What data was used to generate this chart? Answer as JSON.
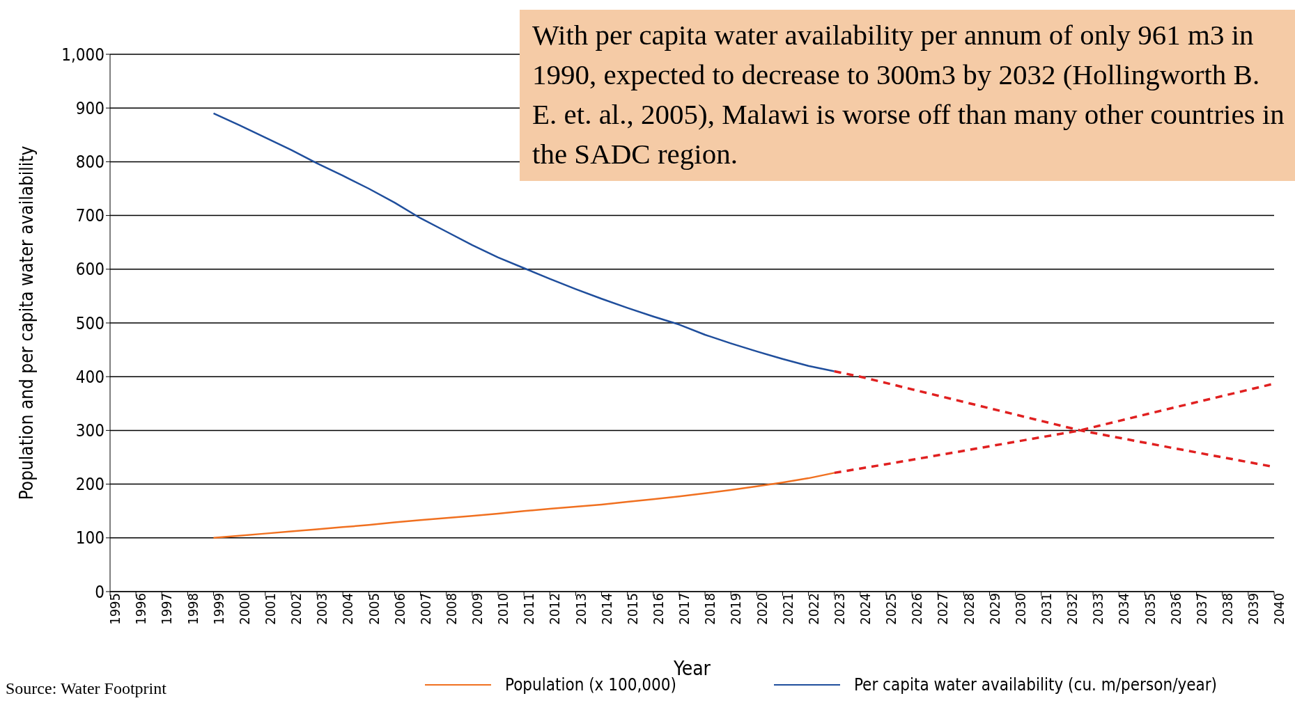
{
  "chart_data": {
    "type": "line",
    "xlabel": "Year",
    "ylabel": "Population and per capita water availability",
    "annotations": [
      "With per capita water availability per annum of only 961 m3 in 1990, expected to decrease to 300m3 by 2032 (Hollingworth B. E. et. al., 2005), Malawi is worse off than many other countries in the SADC region.",
      "Source: Water Footprint"
    ],
    "xlim": [
      1995,
      2040
    ],
    "xticks": [
      1995,
      1996,
      1997,
      1998,
      1999,
      2000,
      2001,
      2002,
      2003,
      2004,
      2005,
      2006,
      2007,
      2008,
      2009,
      2010,
      2011,
      2012,
      2013,
      2014,
      2015,
      2016,
      2017,
      2018,
      2019,
      2020,
      2021,
      2022,
      2023,
      2024,
      2025,
      2026,
      2027,
      2028,
      2029,
      2030,
      2031,
      2032,
      2033,
      2034,
      2035,
      2036,
      2037,
      2038,
      2039,
      2040
    ],
    "ylim": [
      0,
      1000
    ],
    "yticks": [
      0,
      100,
      200,
      300,
      400,
      500,
      600,
      700,
      800,
      900,
      {
        "value": 1000,
        "label": "1,000"
      }
    ],
    "grid": "y",
    "legend": "bottom",
    "series": [
      {
        "name": "Population (x 100,000)",
        "color": "#f07020",
        "x": [
          1999,
          2000,
          2001,
          2002,
          2003,
          2004,
          2005,
          2006,
          2007,
          2008,
          2009,
          2010,
          2011,
          2012,
          2013,
          2014,
          2015,
          2016,
          2017,
          2018,
          2019,
          2020,
          2021,
          2022,
          2023
        ],
        "values": [
          100,
          104,
          108,
          112,
          116,
          120,
          124,
          129,
          133,
          137,
          141,
          145,
          150,
          154,
          158,
          162,
          167,
          172,
          177,
          183,
          189,
          196,
          203,
          211,
          221
        ]
      },
      {
        "name": "Per capita water availability (cu. m/person/year)",
        "color": "#1f4e9c",
        "x": [
          1999,
          2000,
          2001,
          2002,
          2003,
          2004,
          2005,
          2006,
          2007,
          2008,
          2009,
          2010,
          2011,
          2012,
          2013,
          2014,
          2015,
          2016,
          2017,
          2018,
          2019,
          2020,
          2021,
          2022,
          2023
        ],
        "values": [
          890,
          868,
          845,
          822,
          797,
          774,
          750,
          724,
          695,
          670,
          645,
          622,
          602,
          582,
          563,
          545,
          528,
          512,
          497,
          478,
          462,
          447,
          433,
          420,
          410
        ]
      },
      {
        "color": "#e02020",
        "line_style": "dashed",
        "x": [
          2023,
          2025,
          2028,
          2032.5,
          2036,
          2040
        ],
        "values": [
          221,
          237,
          262,
          300,
          341,
          387
        ]
      },
      {
        "color": "#e02020",
        "line_style": "dashed",
        "x": [
          2023,
          2024,
          2028,
          2032.5,
          2036,
          2040
        ],
        "values": [
          410,
          400,
          353,
          300,
          268,
          232
        ]
      }
    ]
  }
}
